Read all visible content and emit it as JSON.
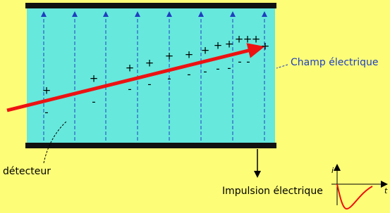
{
  "labels": {
    "field": "Champ électrique",
    "detector": "détecteur",
    "pulse": "Impulsion électrique"
  },
  "charges": {
    "plus": "+",
    "minus": "-"
  },
  "graph": {
    "y_axis": "i",
    "x_axis": "t"
  }
}
